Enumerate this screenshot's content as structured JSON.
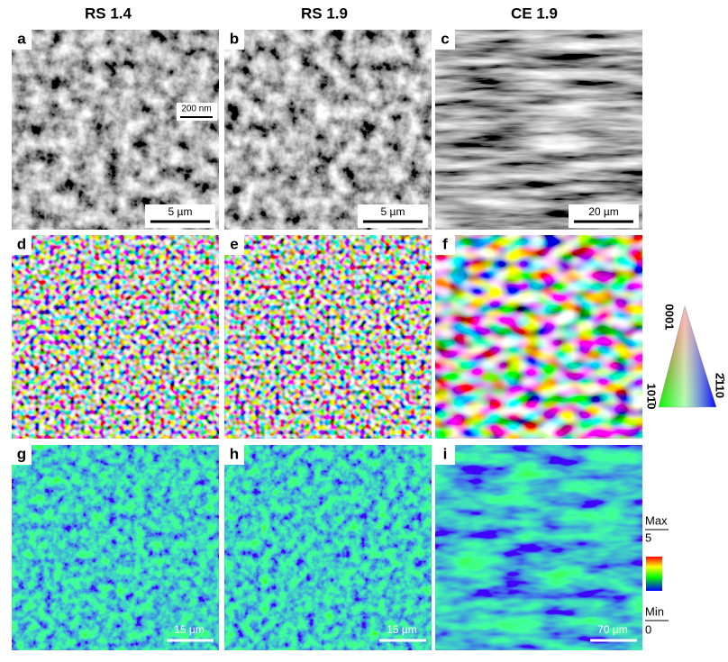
{
  "columns": [
    "RS 1.4",
    "RS 1.9",
    "CE 1.9"
  ],
  "panels": [
    {
      "label": "a",
      "scale_bar": "5 µm"
    },
    {
      "label": "b",
      "scale_bar": "5 µm"
    },
    {
      "label": "c",
      "scale_bar": "20 µm"
    },
    {
      "label": "d"
    },
    {
      "label": "e"
    },
    {
      "label": "f"
    },
    {
      "label": "g",
      "scale_bar": "15 µm"
    },
    {
      "label": "h",
      "scale_bar": "15 µm"
    },
    {
      "label": "i",
      "scale_bar": "70 µm"
    }
  ],
  "inset": {
    "scale_bar": "200 nm"
  },
  "ipf_legend": {
    "top": "0001",
    "left": "101̄0",
    "right": "2̄110"
  },
  "kam_legend": {
    "max_label": "Max",
    "max_value": 5,
    "min_label": "Min",
    "min_value": 0
  }
}
